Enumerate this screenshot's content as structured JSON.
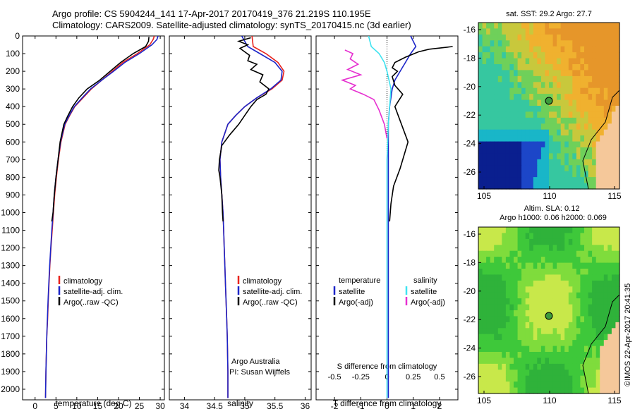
{
  "header": {
    "line1": "Argo profile: CS 5904244_141 17-Apr-2017 20170419_376 21.219S 110.195E",
    "line2": "Climatology: CARS2009. Satellite-adjusted climatology: synTS_20170415.nc (3d earlier)"
  },
  "colors": {
    "climatology": "#e8231c",
    "satellite": "#1c25c8",
    "argo": "#000000",
    "salinity_satellite": "#3fe3f0",
    "salinity_argo": "#e62fd0"
  },
  "chart_data": [
    {
      "type": "line",
      "name": "temperature-panel",
      "xlabel": "temperature (deg C)",
      "ylabel": "",
      "xlim": [
        -3,
        31
      ],
      "ylim": [
        2060,
        0
      ],
      "xticks": [
        0,
        5,
        10,
        15,
        20,
        25,
        30
      ],
      "yticks": [
        0,
        100,
        200,
        300,
        400,
        500,
        600,
        700,
        800,
        900,
        1000,
        1100,
        1200,
        1300,
        1400,
        1500,
        1600,
        1700,
        1800,
        1900,
        2000
      ],
      "legend": [
        "climatology",
        "satellite-adj. clim.",
        "Argo(..raw -QC)"
      ],
      "series": [
        {
          "name": "climatology",
          "x": [
            28.6,
            28.3,
            27.5,
            24.5,
            21,
            18.5,
            16,
            13.5,
            11.5,
            9.5,
            8.3,
            7.2,
            6.2,
            5.6,
            5.1,
            4.7,
            4.4,
            4.1,
            3.8,
            3.55,
            3.35,
            3.15,
            3.0,
            2.8,
            2.7,
            2.6,
            2.5
          ],
          "y": [
            0,
            20,
            50,
            100,
            150,
            200,
            250,
            300,
            350,
            400,
            450,
            500,
            600,
            700,
            800,
            900,
            1000,
            1100,
            1200,
            1300,
            1400,
            1500,
            1600,
            1700,
            1800,
            1900,
            2050
          ]
        },
        {
          "name": "satellite-adj. clim.",
          "x": [
            29.5,
            29.2,
            28,
            25,
            21.5,
            18.8,
            16,
            13.3,
            11.3,
            9.4,
            8.2,
            7.1,
            6.1,
            5.5,
            5.0,
            4.6,
            4.3,
            4.0,
            3.75,
            3.5,
            3.3,
            3.1,
            2.95,
            2.8,
            2.7,
            2.6,
            2.5
          ],
          "y": [
            0,
            20,
            50,
            100,
            150,
            200,
            250,
            300,
            350,
            400,
            450,
            500,
            600,
            700,
            800,
            900,
            1000,
            1100,
            1200,
            1300,
            1400,
            1500,
            1600,
            1700,
            1800,
            1900,
            2050
          ]
        },
        {
          "name": "Argo(..raw -QC)",
          "x": [
            27.3,
            27.2,
            26.5,
            23.5,
            20.5,
            18,
            15.5,
            12.5,
            10.5,
            9,
            7.9,
            6.9,
            6.0,
            5.5,
            5.0,
            4.6,
            4.3,
            4.0
          ],
          "y": [
            5,
            30,
            60,
            100,
            150,
            200,
            250,
            300,
            350,
            400,
            450,
            500,
            600,
            700,
            800,
            900,
            1000,
            1050
          ]
        }
      ]
    },
    {
      "type": "line",
      "name": "salinity-panel",
      "xlabel": "salinity",
      "xlim": [
        33.75,
        36.1
      ],
      "ylim": [
        2060,
        0
      ],
      "xticks": [
        34,
        34.5,
        35,
        35.5,
        36
      ],
      "legend": [
        "climatology",
        "satellite-adj. clim.",
        "Argo(..raw -QC)"
      ],
      "annotation": [
        "Argo Australia",
        "PI: Susan Wijffels"
      ],
      "series": [
        {
          "name": "climatology",
          "x": [
            35.12,
            35.13,
            35.14,
            35.35,
            35.55,
            35.65,
            35.62,
            35.45,
            35.2,
            35.0,
            34.85,
            34.72,
            34.62,
            34.59,
            34.6,
            34.62,
            34.64,
            34.65,
            34.66,
            34.67,
            34.68,
            34.69,
            34.7,
            34.71,
            34.72,
            34.72
          ],
          "y": [
            0,
            30,
            60,
            100,
            150,
            200,
            250,
            300,
            350,
            400,
            450,
            500,
            600,
            700,
            800,
            900,
            1000,
            1100,
            1200,
            1300,
            1400,
            1500,
            1600,
            1700,
            1900,
            2050
          ]
        },
        {
          "name": "satellite-adj. clim.",
          "x": [
            34.95,
            35.0,
            35.05,
            35.25,
            35.5,
            35.62,
            35.6,
            35.43,
            35.2,
            35.0,
            34.85,
            34.72,
            34.62,
            34.59,
            34.6,
            34.62,
            34.64,
            34.65,
            34.66,
            34.67,
            34.68,
            34.69,
            34.7,
            34.71,
            34.72,
            34.72
          ],
          "y": [
            0,
            30,
            60,
            100,
            150,
            200,
            250,
            300,
            350,
            400,
            450,
            500,
            600,
            700,
            800,
            900,
            1000,
            1100,
            1200,
            1300,
            1400,
            1500,
            1600,
            1700,
            1900,
            2050
          ]
        },
        {
          "name": "Argo(..raw -QC)",
          "x": [
            35.1,
            34.9,
            35.05,
            34.92,
            35.0,
            35.08,
            35.05,
            35.2,
            35.1,
            35.3,
            35.25,
            35.4,
            35.35,
            35.2,
            35.1,
            35.0,
            34.9,
            34.75,
            34.62,
            34.58,
            34.57,
            34.59,
            34.62,
            34.63,
            34.64
          ],
          "y": [
            10,
            30,
            50,
            70,
            90,
            110,
            140,
            160,
            190,
            220,
            260,
            300,
            330,
            360,
            400,
            450,
            500,
            560,
            620,
            700,
            760,
            800,
            900,
            1000,
            1050
          ]
        }
      ]
    },
    {
      "type": "line",
      "name": "difference-panel",
      "xlabel": "T difference from climatology",
      "xlabel_top": "S difference from climatology",
      "xlim": [
        -2.7,
        2.7
      ],
      "ylim": [
        2060,
        0
      ],
      "xticks": [
        -2,
        -1,
        0,
        1,
        2
      ],
      "xticks_s": [
        -0.5,
        -0.25,
        0,
        0.25,
        0.5
      ],
      "legend_titles": [
        "temperature",
        "salinity"
      ],
      "legend": [
        "satellite",
        "Argo(-adj)",
        "satellite",
        "Argo(-adj)"
      ],
      "series": [
        {
          "name": "temperature satellite",
          "x": [
            0.9,
            1.1,
            0.9,
            0.7,
            0.5,
            0.3,
            0.2,
            0.1,
            0.05,
            0.05,
            0.05,
            0.05,
            0.05,
            0.05,
            0.05
          ],
          "y": [
            0,
            60,
            100,
            150,
            200,
            250,
            300,
            400,
            500,
            700,
            900,
            1100,
            1400,
            1700,
            2050
          ]
        },
        {
          "name": "temperature Argo(-adj)",
          "x": [
            2.5,
            1.6,
            1.2,
            0.7,
            0.3,
            0.2,
            0.4,
            0.2,
            0.3,
            0.6,
            0.3,
            0.8,
            0.5,
            0.25,
            0.15,
            0.1
          ],
          "y": [
            60,
            75,
            90,
            120,
            150,
            180,
            200,
            230,
            280,
            330,
            400,
            600,
            750,
            850,
            950,
            1050
          ]
        },
        {
          "name": "salinity satellite",
          "x": [
            -0.7,
            -0.6,
            -0.3,
            -0.1,
            0.0,
            0.15,
            0.1,
            0.05,
            0.0,
            0.0,
            0.0,
            0.0,
            0.0
          ],
          "y": [
            0,
            60,
            100,
            150,
            200,
            300,
            400,
            500,
            700,
            900,
            1200,
            1600,
            2050
          ]
        },
        {
          "name": "salinity Argo(-adj)",
          "x": [
            -1.6,
            -1.3,
            -1.4,
            -1.1,
            -1.5,
            -1.0,
            -1.7,
            -1.2,
            -1.4,
            -0.9,
            -0.5,
            -0.3,
            -0.1,
            0.0
          ],
          "y": [
            80,
            100,
            130,
            160,
            190,
            220,
            250,
            280,
            300,
            330,
            360,
            420,
            500,
            580
          ]
        }
      ]
    }
  ],
  "maps": {
    "sst": {
      "title": "sat. SST: 29.2  Argo: 27.7",
      "xticks": [
        "105",
        "110",
        "115"
      ],
      "yticks": [
        "-16",
        "-18",
        "-20",
        "-22",
        "-24",
        "-26"
      ]
    },
    "sla": {
      "title1": "Altim. SLA: 0.12",
      "title2": "Argo h1000: 0.06 h2000: 0.069",
      "xticks": [
        "105",
        "110",
        "115"
      ],
      "yticks": [
        "-16",
        "-18",
        "-20",
        "-22",
        "-24",
        "-26"
      ]
    },
    "credit": "©IMOS 22-Apr-2017 20:41:35"
  }
}
